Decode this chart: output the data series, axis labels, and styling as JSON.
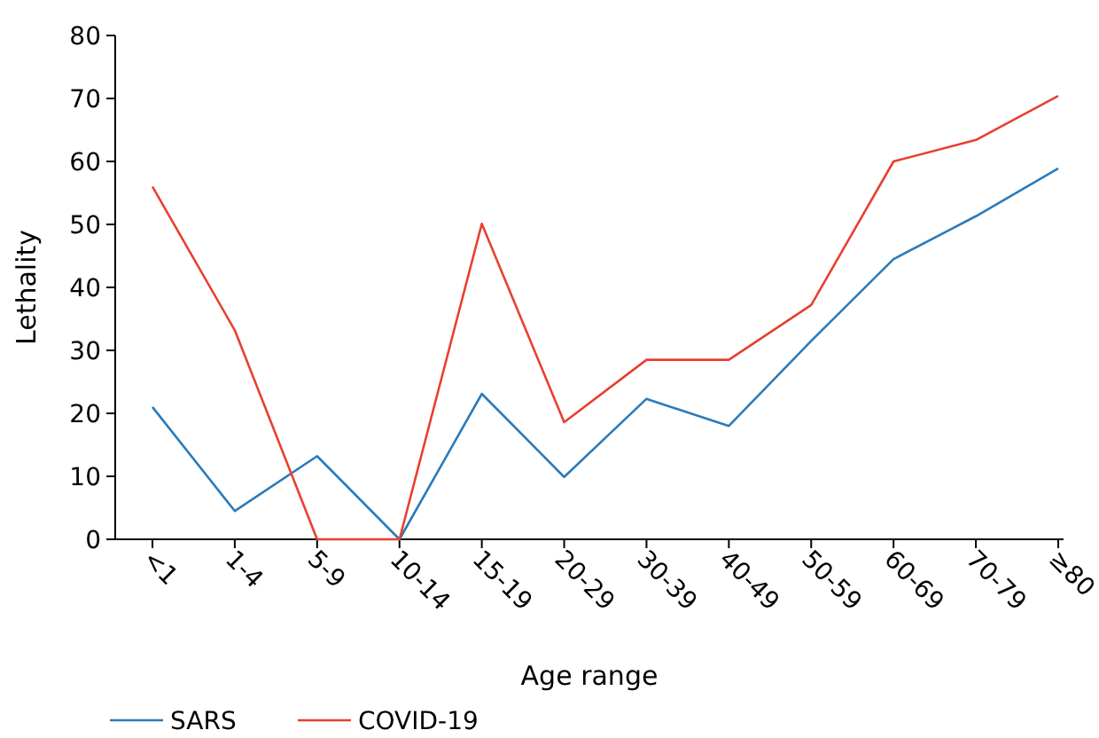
{
  "chart_data": {
    "type": "line",
    "xlabel": "Age range",
    "ylabel": "Lethality",
    "categories": [
      "<1",
      "1-4",
      "5-9",
      "10-14",
      "15-19",
      "20-29",
      "30-39",
      "40-49",
      "50-59",
      "60-69",
      "70-79",
      "≥80"
    ],
    "series": [
      {
        "name": "SARS",
        "color": "#2b7bba",
        "values": [
          21,
          4.5,
          13.2,
          0,
          23.1,
          9.9,
          22.3,
          18,
          31.5,
          44.5,
          51.3,
          58.9
        ]
      },
      {
        "name": "COVID-19",
        "color": "#e8402e",
        "values": [
          56,
          33.2,
          0,
          0,
          50.1,
          18.6,
          28.5,
          28.5,
          37.2,
          60,
          63.4,
          70.4
        ]
      }
    ],
    "ylim": [
      0,
      80
    ],
    "yticks": [
      0,
      10,
      20,
      30,
      40,
      50,
      60,
      70,
      80
    ],
    "grid": false,
    "legend": "bottom left",
    "marker": "none",
    "line_style": "solid"
  }
}
